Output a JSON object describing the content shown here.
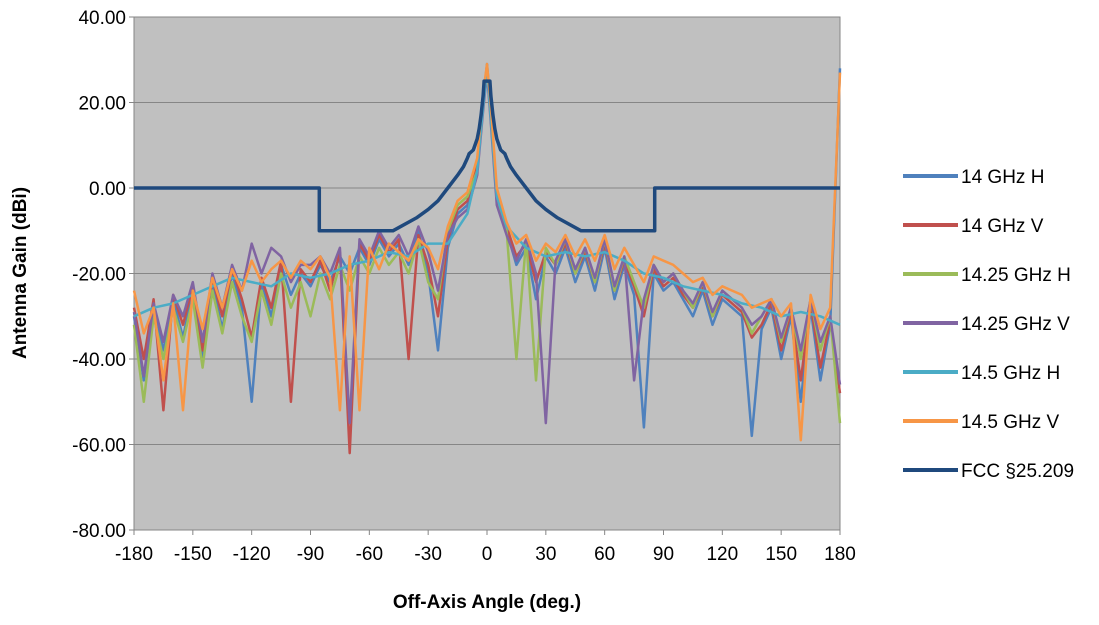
{
  "chart_data": {
    "type": "line",
    "title": "",
    "xlabel": "Off-Axis Angle (deg.)",
    "ylabel": "Antenna Gain (dBi)",
    "xlim": [
      -180,
      180
    ],
    "ylim": [
      -80,
      40
    ],
    "xticks": [
      -180,
      -150,
      -120,
      -90,
      -60,
      -30,
      0,
      30,
      60,
      90,
      120,
      150,
      180
    ],
    "xtick_labels": [
      "-180",
      "-150",
      "-120",
      "-90",
      "-60",
      "-30",
      "0",
      "30",
      "60",
      "90",
      "120",
      "150",
      "180"
    ],
    "yticks": [
      40,
      20,
      0,
      -20,
      -40,
      -60,
      -80
    ],
    "ytick_labels": [
      "40.00",
      "20.00",
      "0.00",
      "-20.00",
      "-40.00",
      "-60.00",
      "-80.00"
    ],
    "grid": "horizontal",
    "plot_background": "#c0c0c0",
    "legend_position": "right",
    "series": [
      {
        "name": "14 GHz H",
        "color": "#4f81bd",
        "x": [
          -180,
          -175,
          -170,
          -165,
          -160,
          -155,
          -150,
          -145,
          -140,
          -135,
          -130,
          -125,
          -120,
          -115,
          -110,
          -105,
          -100,
          -95,
          -90,
          -85,
          -80,
          -75,
          -70,
          -65,
          -60,
          -55,
          -50,
          -45,
          -40,
          -35,
          -30,
          -25,
          -20,
          -15,
          -10,
          -5,
          -2,
          0,
          2,
          5,
          10,
          15,
          20,
          25,
          30,
          35,
          40,
          45,
          50,
          55,
          60,
          65,
          70,
          75,
          80,
          85,
          90,
          95,
          100,
          105,
          110,
          115,
          120,
          125,
          130,
          135,
          140,
          145,
          150,
          155,
          160,
          165,
          170,
          175,
          180
        ],
        "y": [
          -30,
          -45,
          -28,
          -38,
          -26,
          -35,
          -24,
          -40,
          -22,
          -33,
          -20,
          -28,
          -50,
          -22,
          -30,
          -18,
          -25,
          -20,
          -23,
          -18,
          -22,
          -16,
          -20,
          -14,
          -18,
          -12,
          -16,
          -13,
          -18,
          -10,
          -20,
          -38,
          -14,
          -6,
          -4,
          5,
          20,
          29,
          18,
          -2,
          -10,
          -18,
          -14,
          -26,
          -16,
          -20,
          -14,
          -22,
          -16,
          -24,
          -14,
          -26,
          -18,
          -25,
          -56,
          -20,
          -24,
          -22,
          -26,
          -30,
          -24,
          -32,
          -26,
          -28,
          -30,
          -58,
          -33,
          -28,
          -40,
          -30,
          -50,
          -28,
          -45,
          -32,
          28
        ]
      },
      {
        "name": "14 GHz V",
        "color": "#c0504d",
        "x": [
          -180,
          -175,
          -170,
          -165,
          -160,
          -155,
          -150,
          -145,
          -140,
          -135,
          -130,
          -125,
          -120,
          -115,
          -110,
          -105,
          -100,
          -95,
          -90,
          -85,
          -80,
          -75,
          -70,
          -65,
          -60,
          -55,
          -50,
          -45,
          -40,
          -35,
          -30,
          -25,
          -20,
          -15,
          -10,
          -5,
          -2,
          0,
          2,
          5,
          10,
          15,
          20,
          25,
          30,
          35,
          40,
          45,
          50,
          55,
          60,
          65,
          70,
          75,
          80,
          85,
          90,
          95,
          100,
          105,
          110,
          115,
          120,
          125,
          130,
          135,
          140,
          145,
          150,
          155,
          160,
          165,
          170,
          175,
          180
        ],
        "y": [
          -28,
          -40,
          -26,
          -52,
          -25,
          -32,
          -23,
          -38,
          -21,
          -30,
          -19,
          -26,
          -35,
          -21,
          -28,
          -17,
          -50,
          -19,
          -22,
          -17,
          -24,
          -15,
          -62,
          -13,
          -17,
          -11,
          -15,
          -12,
          -40,
          -11,
          -18,
          -30,
          -12,
          -5,
          -3,
          6,
          21,
          28,
          17,
          -1,
          -9,
          -16,
          -13,
          -22,
          -15,
          -18,
          -13,
          -20,
          -15,
          -22,
          -13,
          -24,
          -17,
          -23,
          -30,
          -19,
          -23,
          -21,
          -25,
          -28,
          -23,
          -30,
          -25,
          -27,
          -29,
          -35,
          -32,
          -27,
          -38,
          -29,
          -45,
          -27,
          -42,
          -31,
          -48
        ]
      },
      {
        "name": "14.25 GHz H",
        "color": "#9bbb59",
        "x": [
          -180,
          -175,
          -170,
          -165,
          -160,
          -155,
          -150,
          -145,
          -140,
          -135,
          -130,
          -125,
          -120,
          -115,
          -110,
          -105,
          -100,
          -95,
          -90,
          -85,
          -80,
          -75,
          -70,
          -65,
          -60,
          -55,
          -50,
          -45,
          -40,
          -35,
          -30,
          -25,
          -20,
          -15,
          -10,
          -5,
          -2,
          0,
          2,
          5,
          10,
          15,
          20,
          25,
          30,
          35,
          40,
          45,
          50,
          55,
          60,
          65,
          70,
          75,
          80,
          85,
          90,
          95,
          100,
          105,
          110,
          115,
          120,
          125,
          130,
          135,
          140,
          145,
          150,
          155,
          160,
          165,
          170,
          175,
          180
        ],
        "y": [
          -32,
          -50,
          -30,
          -40,
          -28,
          -36,
          -26,
          -42,
          -24,
          -34,
          -22,
          -30,
          -36,
          -24,
          -32,
          -20,
          -28,
          -22,
          -30,
          -20,
          -26,
          -18,
          -24,
          -16,
          -20,
          -14,
          -18,
          -15,
          -20,
          -12,
          -22,
          -26,
          -10,
          -4,
          -2,
          4,
          19,
          28,
          16,
          -3,
          -10,
          -40,
          -12,
          -45,
          -14,
          -18,
          -12,
          -20,
          -14,
          -22,
          -12,
          -24,
          -16,
          -22,
          -28,
          -18,
          -22,
          -20,
          -24,
          -28,
          -22,
          -30,
          -24,
          -26,
          -28,
          -34,
          -30,
          -26,
          -36,
          -28,
          -40,
          -26,
          -38,
          -30,
          -55
        ]
      },
      {
        "name": "14.25 GHz V",
        "color": "#8064a2",
        "x": [
          -180,
          -175,
          -170,
          -165,
          -160,
          -155,
          -150,
          -145,
          -140,
          -135,
          -130,
          -125,
          -120,
          -115,
          -110,
          -105,
          -100,
          -95,
          -90,
          -85,
          -80,
          -75,
          -70,
          -65,
          -60,
          -55,
          -50,
          -45,
          -40,
          -35,
          -30,
          -25,
          -20,
          -15,
          -10,
          -5,
          -2,
          0,
          2,
          5,
          10,
          15,
          20,
          25,
          30,
          35,
          40,
          45,
          50,
          55,
          60,
          65,
          70,
          75,
          80,
          85,
          90,
          95,
          100,
          105,
          110,
          115,
          120,
          125,
          130,
          135,
          140,
          145,
          150,
          155,
          160,
          165,
          170,
          175,
          180
        ],
        "y": [
          -29,
          -44,
          -27,
          -36,
          -25,
          -30,
          -22,
          -36,
          -20,
          -28,
          -18,
          -24,
          -13,
          -20,
          -14,
          -16,
          -22,
          -18,
          -18,
          -16,
          -20,
          -14,
          -55,
          -12,
          -16,
          -10,
          -14,
          -11,
          -16,
          -9,
          -15,
          -24,
          -11,
          -7,
          -5,
          3,
          18,
          27,
          15,
          -4,
          -11,
          -17,
          -12,
          -20,
          -55,
          -17,
          -12,
          -19,
          -14,
          -21,
          -12,
          -23,
          -16,
          -45,
          -26,
          -18,
          -22,
          -20,
          -24,
          -27,
          -22,
          -29,
          -24,
          -26,
          -28,
          -32,
          -30,
          -26,
          -35,
          -28,
          -38,
          -26,
          -36,
          -30,
          -46
        ]
      },
      {
        "name": "14.5 GHz H",
        "color": "#4bacc6",
        "x": [
          -180,
          -170,
          -160,
          -150,
          -140,
          -130,
          -120,
          -110,
          -100,
          -90,
          -80,
          -70,
          -60,
          -50,
          -40,
          -30,
          -20,
          -10,
          -5,
          -2,
          0,
          2,
          5,
          10,
          20,
          30,
          40,
          50,
          60,
          70,
          80,
          90,
          100,
          110,
          120,
          130,
          140,
          150,
          160,
          170,
          180
        ],
        "y": [
          -30,
          -28,
          -27,
          -25,
          -23,
          -21,
          -22,
          -23,
          -20,
          -21,
          -20,
          -18,
          -17,
          -15,
          -16,
          -13,
          -13,
          -6,
          4,
          19,
          28,
          16,
          -2,
          -9,
          -14,
          -16,
          -15,
          -16,
          -15,
          -17,
          -20,
          -21,
          -23,
          -24,
          -25,
          -27,
          -28,
          -30,
          -29,
          -30,
          -32
        ]
      },
      {
        "name": "14.5 GHz V",
        "color": "#f79646",
        "x": [
          -180,
          -175,
          -170,
          -165,
          -160,
          -155,
          -150,
          -145,
          -140,
          -135,
          -130,
          -125,
          -120,
          -115,
          -110,
          -105,
          -100,
          -95,
          -90,
          -85,
          -80,
          -75,
          -70,
          -65,
          -60,
          -55,
          -50,
          -45,
          -40,
          -35,
          -30,
          -25,
          -20,
          -15,
          -10,
          -5,
          -2,
          0,
          2,
          5,
          10,
          15,
          20,
          25,
          30,
          35,
          40,
          45,
          50,
          55,
          60,
          65,
          70,
          75,
          80,
          85,
          90,
          95,
          100,
          105,
          110,
          115,
          120,
          125,
          130,
          135,
          140,
          145,
          150,
          155,
          160,
          165,
          170,
          175,
          180
        ],
        "y": [
          -24,
          -34,
          -28,
          -45,
          -27,
          -52,
          -24,
          -33,
          -21,
          -28,
          -19,
          -24,
          -17,
          -22,
          -19,
          -17,
          -21,
          -17,
          -19,
          -16,
          -21,
          -52,
          -16,
          -52,
          -14,
          -19,
          -13,
          -15,
          -17,
          -12,
          -14,
          -19,
          -9,
          -3,
          -1,
          7,
          22,
          29,
          19,
          0,
          -8,
          -13,
          -11,
          -17,
          -13,
          -15,
          -11,
          -16,
          -12,
          -17,
          -11,
          -19,
          -14,
          -18,
          -22,
          -16,
          -17,
          -18,
          -20,
          -22,
          -21,
          -25,
          -23,
          -24,
          -25,
          -28,
          -27,
          -26,
          -30,
          -27,
          -59,
          -25,
          -33,
          -28,
          27
        ]
      },
      {
        "name": "FCC §25.209",
        "color": "#1f497d",
        "x": [
          -180,
          -85.5,
          -85.5,
          -48,
          -36,
          -30,
          -25,
          -20,
          -15,
          -12,
          -10,
          -9.2,
          -9.2,
          -7,
          -5,
          -4,
          -3,
          -2,
          -1.5,
          -1.5,
          1.5,
          1.5,
          2,
          3,
          4,
          5,
          7,
          9.2,
          9.2,
          10,
          12,
          15,
          20,
          25,
          30,
          36,
          48,
          85.5,
          85.5,
          180
        ],
        "y": [
          0,
          0,
          -10,
          -10,
          -7,
          -5,
          -3,
          0,
          3,
          5,
          7,
          7.9,
          8,
          8.9,
          11.5,
          13.9,
          17.1,
          21.5,
          25,
          25,
          25,
          25,
          21.5,
          17.1,
          13.9,
          11.5,
          8.9,
          8,
          7.9,
          7,
          5,
          3,
          0,
          -3,
          -5,
          -7,
          -10,
          -10,
          0,
          0
        ]
      }
    ]
  }
}
